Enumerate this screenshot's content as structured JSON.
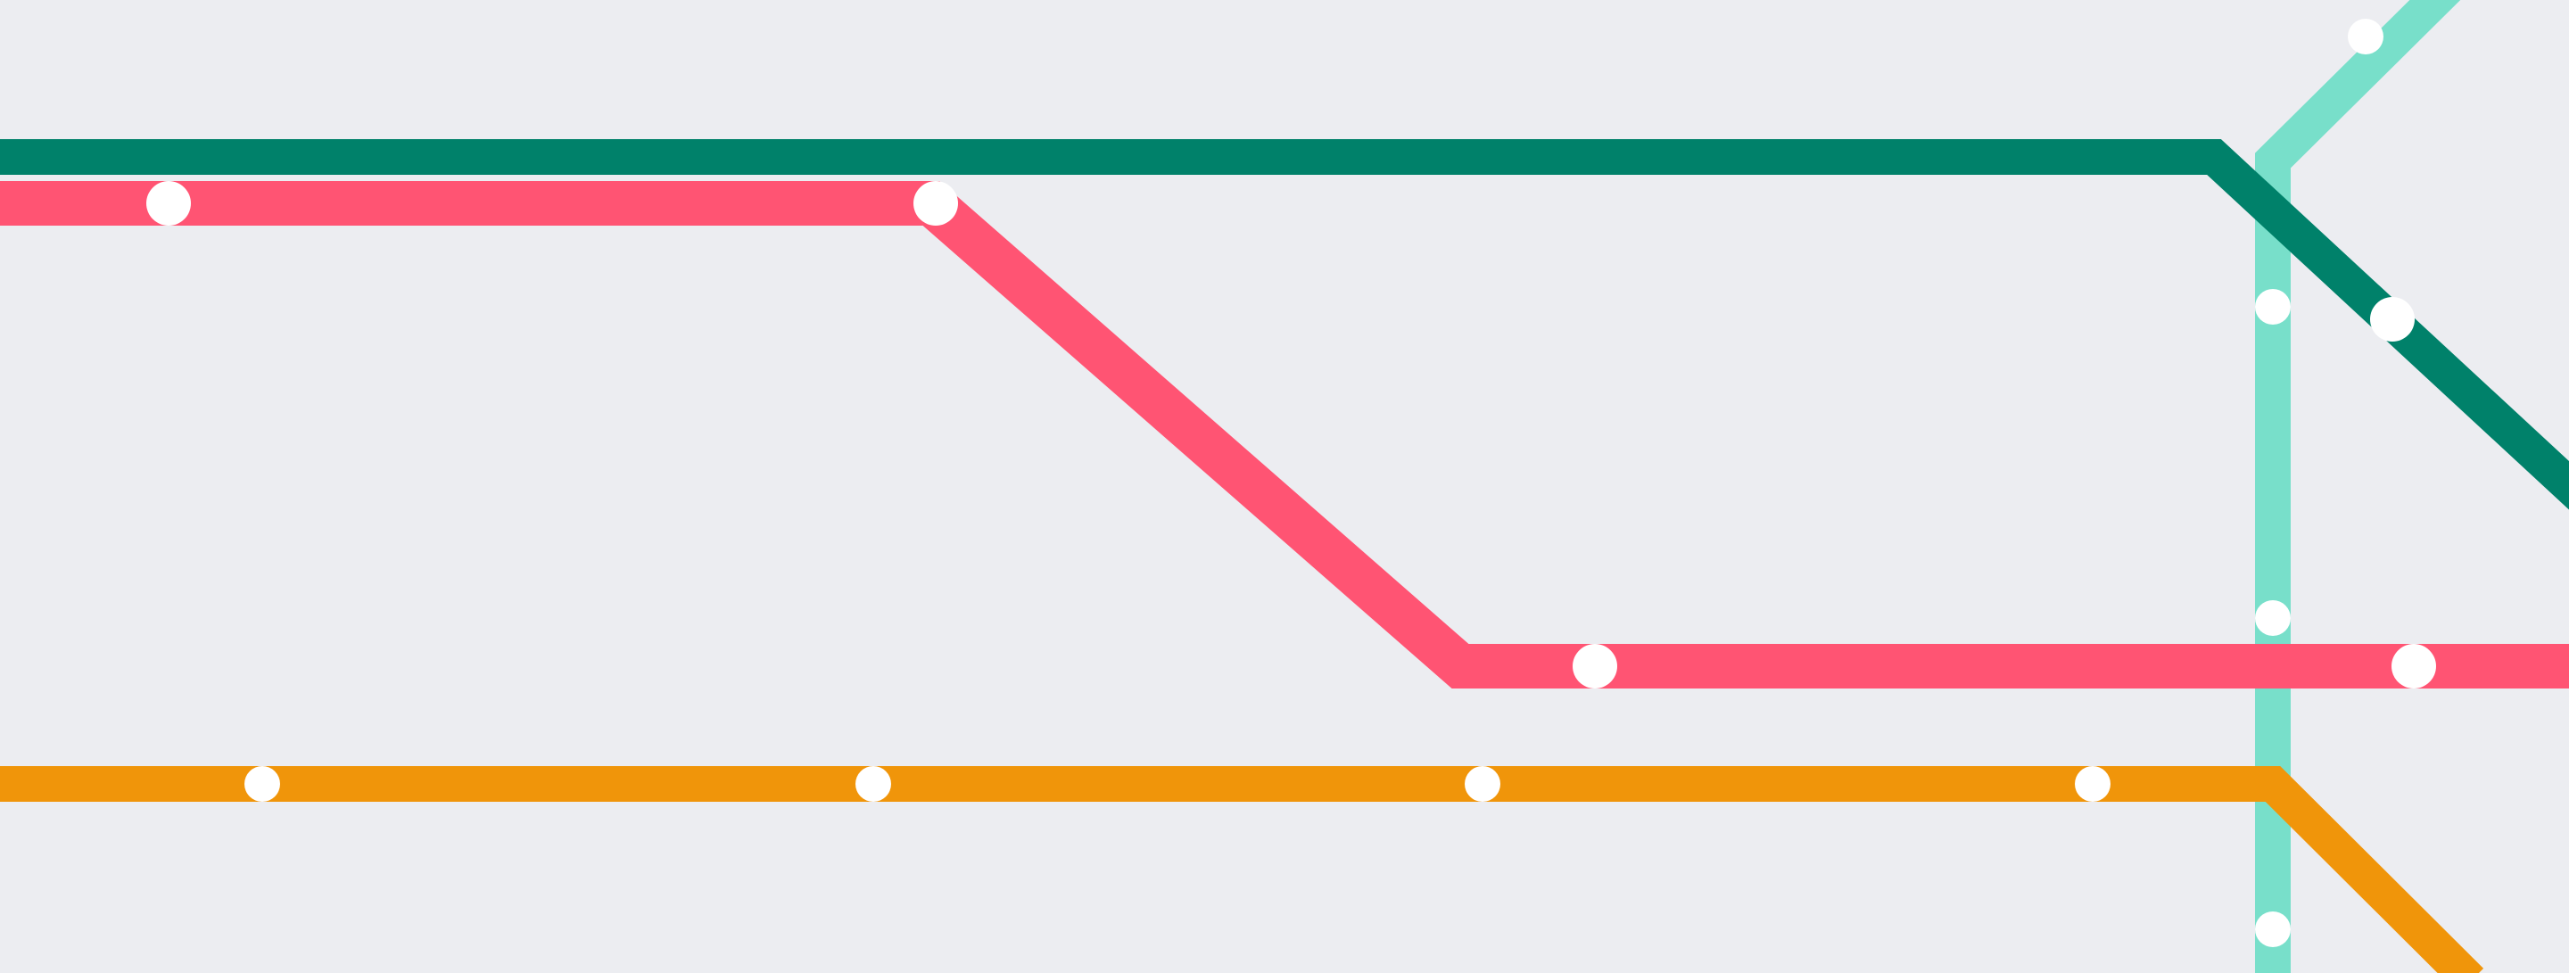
{
  "map": {
    "background_color": "#ecedf1",
    "lines": [
      {
        "id": "dark-green-line",
        "color": "#00816a"
      },
      {
        "id": "pink-line",
        "color": "#ff5473"
      },
      {
        "id": "orange-line",
        "color": "#f0950a"
      },
      {
        "id": "teal-line",
        "color": "#78dfca"
      }
    ],
    "stations": [
      {
        "id": "pink-station-1",
        "line": "pink-line",
        "interchange": true
      },
      {
        "id": "pink-station-2",
        "line": "pink-line",
        "interchange": true
      },
      {
        "id": "pink-station-3",
        "line": "pink-line",
        "interchange": true
      },
      {
        "id": "pink-station-4",
        "line": "pink-line",
        "interchange": true
      },
      {
        "id": "green-station-1",
        "line": "dark-green-line",
        "interchange": true
      },
      {
        "id": "orange-station-1",
        "line": "orange-line",
        "interchange": false
      },
      {
        "id": "orange-station-2",
        "line": "orange-line",
        "interchange": false
      },
      {
        "id": "orange-station-3",
        "line": "orange-line",
        "interchange": false
      },
      {
        "id": "orange-station-4",
        "line": "orange-line",
        "interchange": false
      },
      {
        "id": "teal-station-1",
        "line": "teal-line",
        "interchange": false
      },
      {
        "id": "teal-station-2",
        "line": "teal-line",
        "interchange": false
      },
      {
        "id": "teal-station-3",
        "line": "teal-line",
        "interchange": false
      },
      {
        "id": "teal-station-4",
        "line": "teal-line",
        "interchange": false
      }
    ]
  }
}
